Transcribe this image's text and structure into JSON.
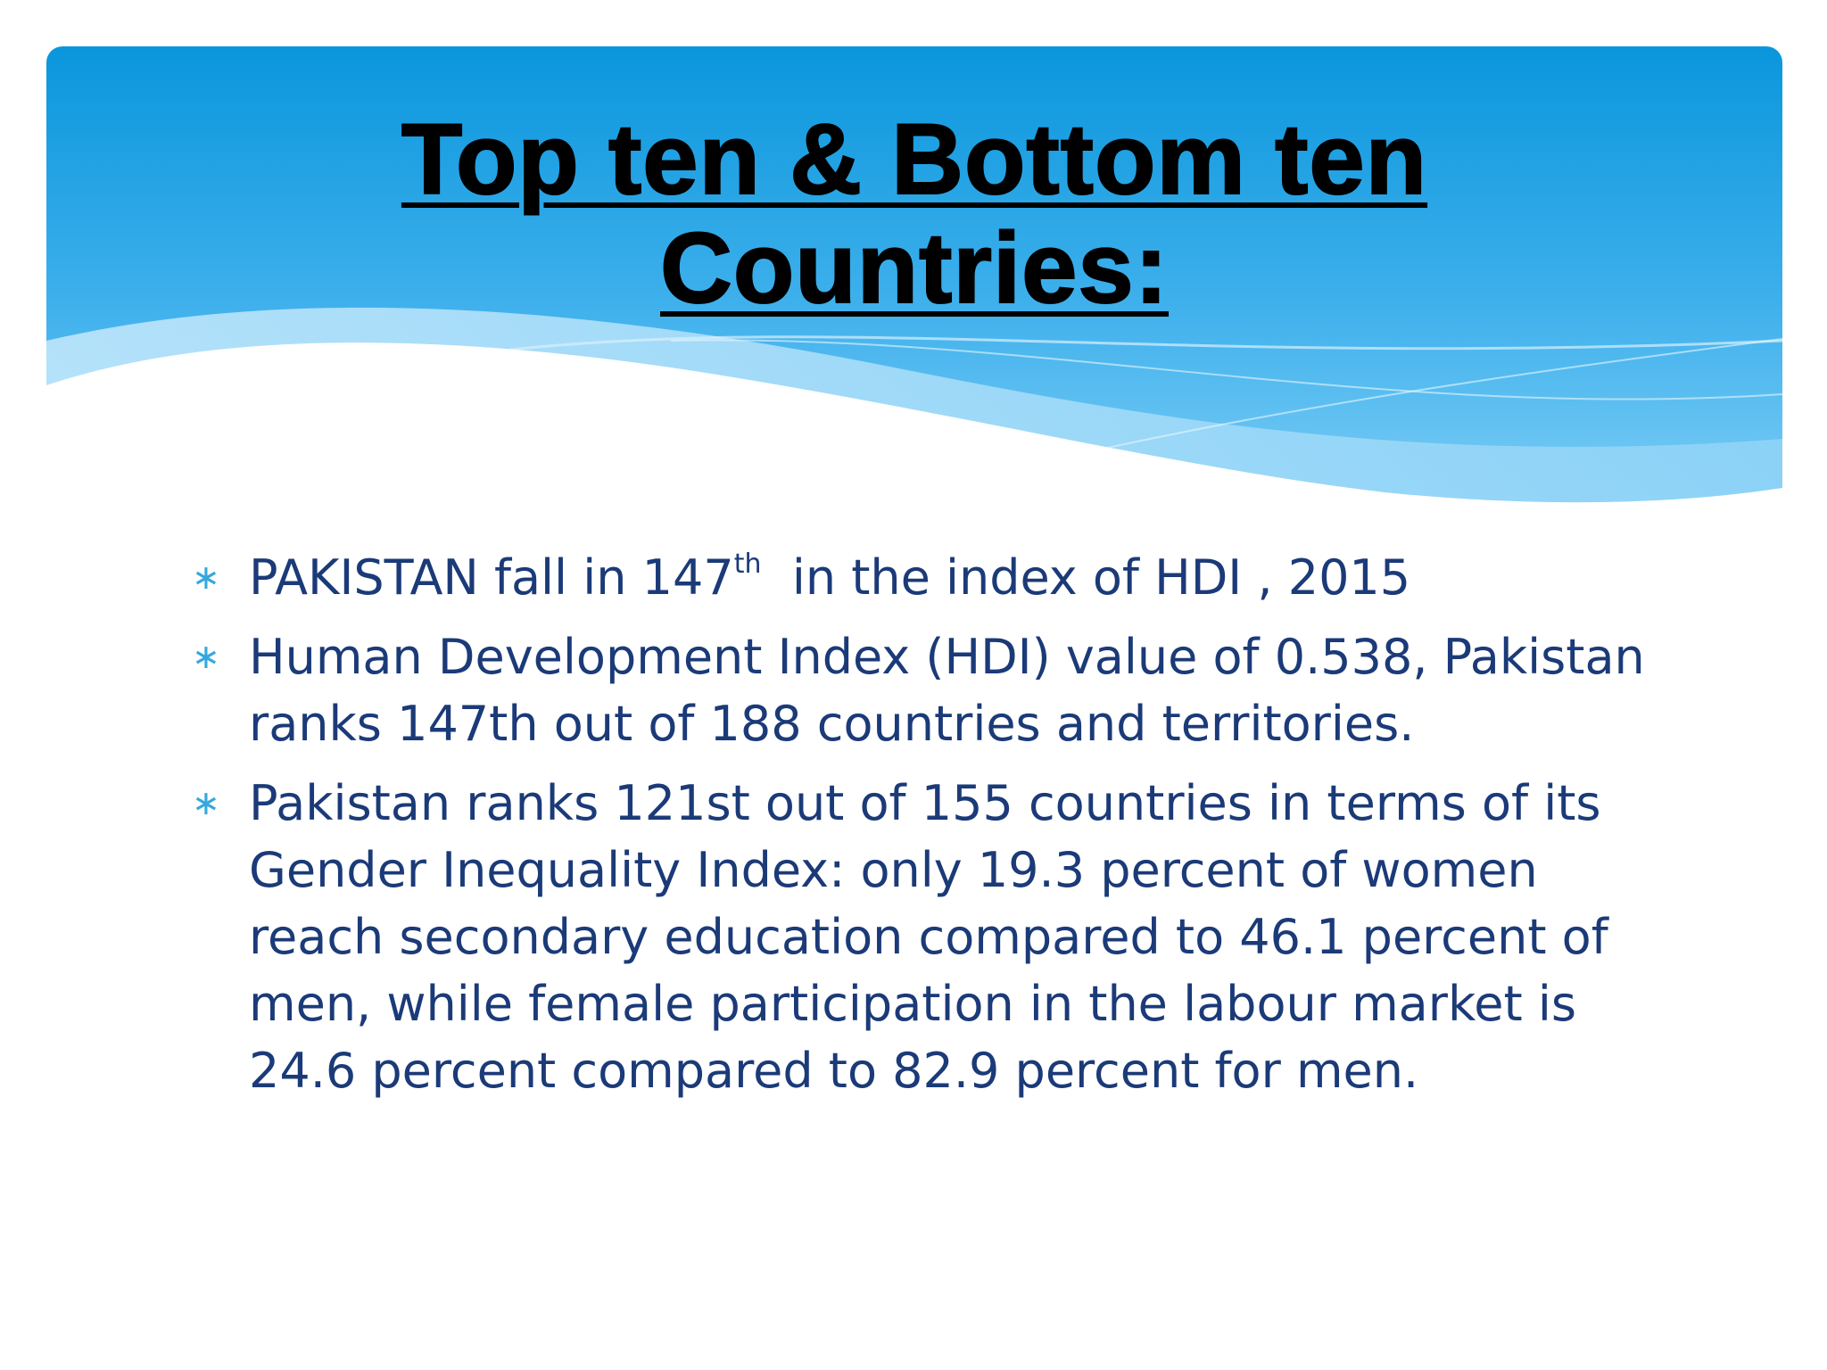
{
  "title": {
    "line1": "Top ten & Bottom ten",
    "line2": "Countries:"
  },
  "bullets": [
    {
      "pre": "PAKISTAN fall in 147",
      "sup": "th",
      "post": "  in the index of HDI , 2015"
    },
    {
      "text": "Human Development Index (HDI) value of 0.538, Pakistan ranks 147th out of 188 countries and territories."
    },
    {
      "text": "Pakistan ranks 121st out of 155 countries in terms of its Gender Inequality Index: only 19.3 percent of women reach secondary education compared to 46.1 percent of men, while female participation in the labour market is 24.6 percent compared to 82.9 percent for men."
    }
  ],
  "bullet_symbol": "∗",
  "colors": {
    "banner_top": "#0a96dc",
    "banner_bottom": "#5fc0f0",
    "body_text": "#1b3a78",
    "bullet": "#34a8de"
  }
}
